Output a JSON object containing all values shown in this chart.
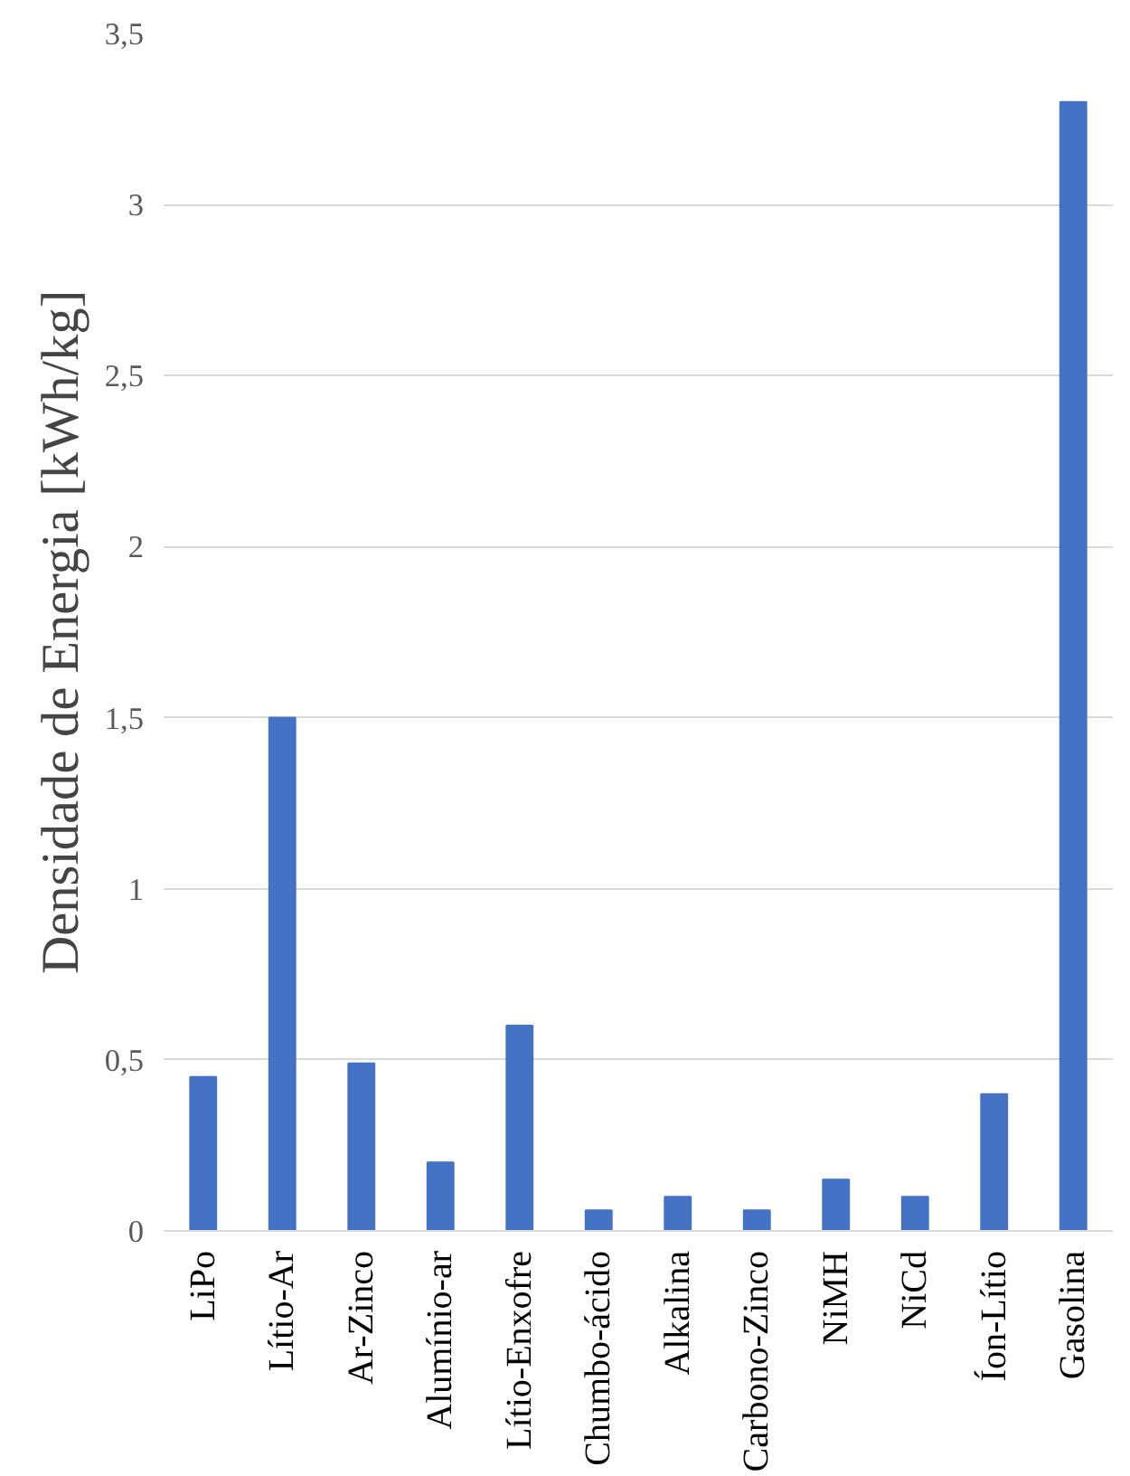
{
  "chart_data": {
    "type": "bar",
    "ylabel": "Densidade de Energia [kWh/kg]",
    "categories": [
      "LiPo",
      "Lítio-Ar",
      "Ar-Zinco",
      "Alumínio-ar",
      "Lítio-Enxofre",
      "Chumbo-ácido",
      "Alkalina",
      "Carbono-Zinco",
      "NiMH",
      "NiCd",
      "Íon-Lítio",
      "Gasolina"
    ],
    "values": [
      0.45,
      1.5,
      0.49,
      0.2,
      0.6,
      0.06,
      0.1,
      0.06,
      0.15,
      0.1,
      0.4,
      3.3
    ],
    "color": "#4472c4",
    "ylim": [
      0,
      3.5
    ],
    "yticks": [
      0,
      {
        "value": 0.5,
        "label": "0,5"
      },
      1,
      {
        "value": 1.5,
        "label": "1,5"
      },
      2,
      {
        "value": 2.5,
        "label": "2,5"
      },
      3,
      {
        "value": 3.5,
        "label": "3,5"
      }
    ],
    "grid": "y"
  }
}
